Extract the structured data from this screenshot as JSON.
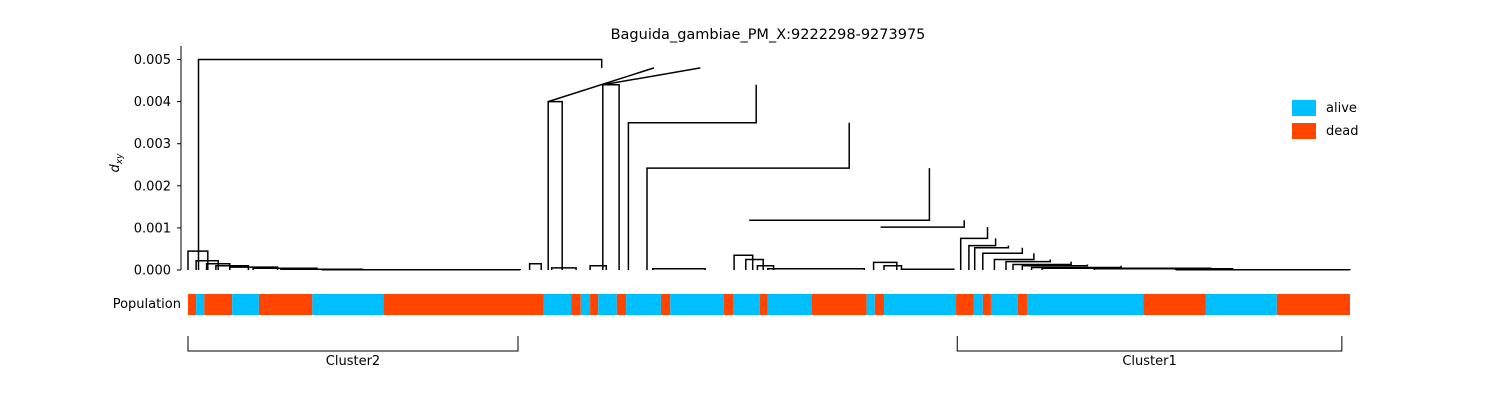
{
  "chart_data": {
    "type": "dendrogram",
    "title": "Baguida_gambiae_PM_X:9222298-9273975",
    "ylabel": "d",
    "ylabel_subscript": "xy",
    "ylim": [
      0,
      0.00525
    ],
    "yticks": [
      "0.000",
      "0.001",
      "0.002",
      "0.003",
      "0.004",
      "0.005"
    ],
    "ytick_values": [
      0,
      0.001,
      0.002,
      0.003,
      0.004,
      0.005
    ],
    "population_label": "Population",
    "legend": {
      "placement": "right",
      "entries": [
        {
          "label": "alive",
          "color": "#00bfff"
        },
        {
          "label": "dead",
          "color": "#ff4500"
        }
      ]
    },
    "population_strip": [
      {
        "start": 0.0,
        "end": 0.7,
        "group": "dead"
      },
      {
        "start": 0.7,
        "end": 1.4,
        "group": "alive"
      },
      {
        "start": 1.4,
        "end": 3.8,
        "group": "dead"
      },
      {
        "start": 3.8,
        "end": 6.1,
        "group": "alive"
      },
      {
        "start": 6.1,
        "end": 10.7,
        "group": "dead"
      },
      {
        "start": 10.7,
        "end": 16.8,
        "group": "alive"
      },
      {
        "start": 16.8,
        "end": 30.6,
        "group": "dead"
      },
      {
        "start": 30.6,
        "end": 33.0,
        "group": "alive"
      },
      {
        "start": 33.0,
        "end": 33.8,
        "group": "dead"
      },
      {
        "start": 33.8,
        "end": 34.6,
        "group": "alive"
      },
      {
        "start": 34.6,
        "end": 35.3,
        "group": "dead"
      },
      {
        "start": 35.3,
        "end": 36.9,
        "group": "alive"
      },
      {
        "start": 36.9,
        "end": 37.7,
        "group": "dead"
      },
      {
        "start": 37.7,
        "end": 40.7,
        "group": "alive"
      },
      {
        "start": 40.7,
        "end": 41.5,
        "group": "dead"
      },
      {
        "start": 41.5,
        "end": 46.1,
        "group": "alive"
      },
      {
        "start": 46.1,
        "end": 46.9,
        "group": "dead"
      },
      {
        "start": 46.9,
        "end": 49.2,
        "group": "alive"
      },
      {
        "start": 49.2,
        "end": 49.9,
        "group": "dead"
      },
      {
        "start": 49.9,
        "end": 53.7,
        "group": "alive"
      },
      {
        "start": 53.7,
        "end": 58.4,
        "group": "dead"
      },
      {
        "start": 58.4,
        "end": 59.1,
        "group": "alive"
      },
      {
        "start": 59.1,
        "end": 59.9,
        "group": "dead"
      },
      {
        "start": 59.9,
        "end": 66.1,
        "group": "alive"
      },
      {
        "start": 66.1,
        "end": 67.6,
        "group": "dead"
      },
      {
        "start": 67.6,
        "end": 68.4,
        "group": "alive"
      },
      {
        "start": 68.4,
        "end": 69.1,
        "group": "dead"
      },
      {
        "start": 69.1,
        "end": 71.4,
        "group": "alive"
      },
      {
        "start": 71.4,
        "end": 72.2,
        "group": "dead"
      },
      {
        "start": 72.2,
        "end": 82.2,
        "group": "alive"
      },
      {
        "start": 82.2,
        "end": 87.6,
        "group": "dead"
      },
      {
        "start": 87.6,
        "end": 93.7,
        "group": "alive"
      },
      {
        "start": 93.7,
        "end": 100.0,
        "group": "dead"
      }
    ],
    "clusters": [
      {
        "label": "Cluster2",
        "start": 0.0,
        "end": 28.4
      },
      {
        "label": "Cluster1",
        "start": 66.2,
        "end": 99.3
      }
    ],
    "links": [
      {
        "x": [
          0.9,
          0.9,
          35.6,
          35.6
        ],
        "y": [
          0,
          0.005,
          0.005,
          0.0048
        ]
      },
      {
        "x": [
          0.0,
          0.0,
          1.7,
          1.7
        ],
        "y": [
          0,
          0.00045,
          0.00045,
          0
        ]
      },
      {
        "x": [
          0.7,
          0.7,
          2.6,
          2.6
        ],
        "y": [
          0,
          0.00022,
          0.00022,
          0
        ]
      },
      {
        "x": [
          1.6,
          1.6,
          3.6,
          3.6
        ],
        "y": [
          0,
          0.00015,
          0.00015,
          0
        ]
      },
      {
        "x": [
          2.4,
          2.4,
          5.2,
          5.2
        ],
        "y": [
          0,
          0.0001,
          0.0001,
          0
        ]
      },
      {
        "x": [
          3.6,
          3.6,
          7.7,
          7.7
        ],
        "y": [
          0,
          7e-05,
          7e-05,
          0
        ]
      },
      {
        "x": [
          5.6,
          5.6,
          11.1,
          11.1
        ],
        "y": [
          0,
          4e-05,
          4e-05,
          0
        ]
      },
      {
        "x": [
          8.0,
          8.0,
          15.0,
          15.0
        ],
        "y": [
          0,
          2e-05,
          2e-05,
          0
        ]
      },
      {
        "x": [
          11.5,
          11.5,
          28.6,
          28.6
        ],
        "y": [
          0,
          5e-06,
          5e-06,
          0
        ]
      },
      {
        "x": [
          31.0,
          31.0,
          40.1,
          40.1
        ],
        "y": [
          0.004,
          0.004,
          0.0048,
          0.0048
        ]
      },
      {
        "x": [
          31.0,
          31.0,
          32.2,
          32.2
        ],
        "y": [
          0,
          0.004,
          0.004,
          0
        ]
      },
      {
        "x": [
          29.4,
          29.4,
          30.4,
          30.4
        ],
        "y": [
          0,
          0.00015,
          0.00015,
          0
        ]
      },
      {
        "x": [
          31.3,
          31.3,
          33.4,
          33.4
        ],
        "y": [
          0,
          5e-05,
          5e-05,
          0
        ]
      },
      {
        "x": [
          35.7,
          35.7,
          44.1,
          44.1
        ],
        "y": [
          0.0044,
          0.0044,
          0.0048,
          0.0048
        ]
      },
      {
        "x": [
          35.7,
          35.7,
          37.1,
          37.1
        ],
        "y": [
          0,
          0.0044,
          0.0044,
          0
        ]
      },
      {
        "x": [
          34.6,
          34.6,
          36.0,
          36.0
        ],
        "y": [
          0,
          0.0001,
          0.0001,
          0
        ]
      },
      {
        "x": [
          37.9,
          37.9,
          48.9,
          48.9
        ],
        "y": [
          0,
          0.0035,
          0.0035,
          0.0044
        ]
      },
      {
        "x": [
          39.5,
          39.5,
          56.9,
          56.9
        ],
        "y": [
          0,
          0.00242,
          0.00242,
          0.0035
        ]
      },
      {
        "x": [
          48.3,
          48.3,
          63.8,
          63.8
        ],
        "y": [
          0.00118,
          0.00118,
          0.00118,
          0.00242
        ]
      },
      {
        "x": [
          40.0,
          40.0,
          44.5,
          44.5
        ],
        "y": [
          0,
          3e-05,
          3e-05,
          0
        ]
      },
      {
        "x": [
          47.0,
          47.0,
          48.6,
          48.6
        ],
        "y": [
          0,
          0.00035,
          0.00035,
          0
        ]
      },
      {
        "x": [
          48.0,
          48.0,
          49.5,
          49.5
        ],
        "y": [
          0,
          0.00025,
          0.00025,
          0
        ]
      },
      {
        "x": [
          49.0,
          49.0,
          50.4,
          50.4
        ],
        "y": [
          0,
          0.0001,
          0.0001,
          0
        ]
      },
      {
        "x": [
          49.9,
          49.9,
          58.2,
          58.2
        ],
        "y": [
          0,
          3e-05,
          3e-05,
          0
        ]
      },
      {
        "x": [
          59.6,
          59.6,
          66.8,
          66.8
        ],
        "y": [
          0.00102,
          0.00102,
          0.00102,
          0.00118
        ]
      },
      {
        "x": [
          59.0,
          59.0,
          61.0,
          61.0
        ],
        "y": [
          0,
          0.00018,
          0.00018,
          0
        ]
      },
      {
        "x": [
          59.9,
          59.9,
          61.4,
          61.4
        ],
        "y": [
          0,
          0.0001,
          0.0001,
          0
        ]
      },
      {
        "x": [
          61.4,
          61.4,
          65.9,
          65.9
        ],
        "y": [
          0,
          2e-05,
          2e-05,
          0
        ]
      },
      {
        "x": [
          66.5,
          66.5,
          68.8,
          68.8
        ],
        "y": [
          0,
          0.00075,
          0.00075,
          0.00102
        ]
      },
      {
        "x": [
          67.2,
          67.2,
          69.5,
          69.5
        ],
        "y": [
          0,
          0.00058,
          0.00058,
          0.00075
        ]
      },
      {
        "x": [
          67.7,
          67.7,
          70.6,
          70.6
        ],
        "y": [
          0,
          0.00053,
          0.00053,
          0.00058
        ]
      },
      {
        "x": [
          68.4,
          68.4,
          71.8,
          71.8
        ],
        "y": [
          0,
          0.0004,
          0.0004,
          0.00053
        ]
      },
      {
        "x": [
          69.4,
          69.4,
          72.8,
          72.8
        ],
        "y": [
          0,
          0.00025,
          0.00025,
          0.0004
        ]
      },
      {
        "x": [
          70.4,
          70.4,
          74.2,
          74.2
        ],
        "y": [
          0,
          0.0002,
          0.0002,
          0.00025
        ]
      },
      {
        "x": [
          71.0,
          71.0,
          76.0,
          76.0
        ],
        "y": [
          0,
          0.00013,
          0.00013,
          0.0002
        ]
      },
      {
        "x": [
          71.8,
          71.8,
          77.4,
          77.4
        ],
        "y": [
          0,
          0.0001,
          0.0001,
          0.00013
        ]
      },
      {
        "x": [
          72.6,
          72.6,
          80.3,
          80.3
        ],
        "y": [
          0,
          6e-05,
          6e-05,
          0.0001
        ]
      },
      {
        "x": [
          73.5,
          73.5,
          88.0,
          88.0
        ],
        "y": [
          0,
          4e-05,
          4e-05,
          6e-05
        ]
      },
      {
        "x": [
          78.0,
          78.0,
          89.9,
          89.9
        ],
        "y": [
          0,
          3e-05,
          3e-05,
          0
        ]
      },
      {
        "x": [
          85.0,
          85.0,
          100.0,
          100.0
        ],
        "y": [
          0,
          5e-06,
          5e-06,
          0
        ]
      }
    ]
  }
}
